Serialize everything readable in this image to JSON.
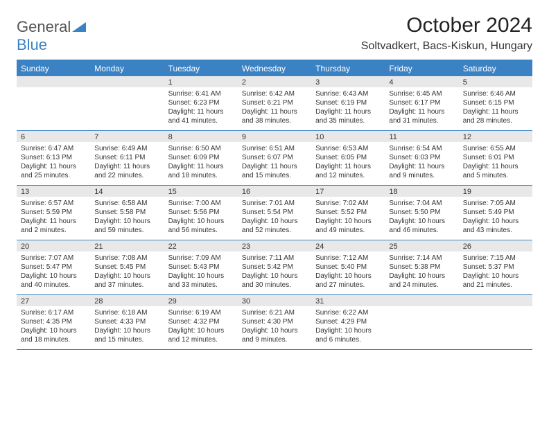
{
  "logo": {
    "text1": "General",
    "text2": "Blue"
  },
  "title": "October 2024",
  "location": "Soltvadkert, Bacs-Kiskun, Hungary",
  "colors": {
    "primary": "#3b82c4",
    "header_bg": "#3b82c4",
    "daynum_bg": "#e8e8e8",
    "text": "#333333",
    "bg": "#ffffff"
  },
  "day_names": [
    "Sunday",
    "Monday",
    "Tuesday",
    "Wednesday",
    "Thursday",
    "Friday",
    "Saturday"
  ],
  "weeks": [
    [
      {
        "n": "",
        "empty": true
      },
      {
        "n": "",
        "empty": true
      },
      {
        "n": "1",
        "sunrise": "Sunrise: 6:41 AM",
        "sunset": "Sunset: 6:23 PM",
        "daylight": "Daylight: 11 hours and 41 minutes."
      },
      {
        "n": "2",
        "sunrise": "Sunrise: 6:42 AM",
        "sunset": "Sunset: 6:21 PM",
        "daylight": "Daylight: 11 hours and 38 minutes."
      },
      {
        "n": "3",
        "sunrise": "Sunrise: 6:43 AM",
        "sunset": "Sunset: 6:19 PM",
        "daylight": "Daylight: 11 hours and 35 minutes."
      },
      {
        "n": "4",
        "sunrise": "Sunrise: 6:45 AM",
        "sunset": "Sunset: 6:17 PM",
        "daylight": "Daylight: 11 hours and 31 minutes."
      },
      {
        "n": "5",
        "sunrise": "Sunrise: 6:46 AM",
        "sunset": "Sunset: 6:15 PM",
        "daylight": "Daylight: 11 hours and 28 minutes."
      }
    ],
    [
      {
        "n": "6",
        "sunrise": "Sunrise: 6:47 AM",
        "sunset": "Sunset: 6:13 PM",
        "daylight": "Daylight: 11 hours and 25 minutes."
      },
      {
        "n": "7",
        "sunrise": "Sunrise: 6:49 AM",
        "sunset": "Sunset: 6:11 PM",
        "daylight": "Daylight: 11 hours and 22 minutes."
      },
      {
        "n": "8",
        "sunrise": "Sunrise: 6:50 AM",
        "sunset": "Sunset: 6:09 PM",
        "daylight": "Daylight: 11 hours and 18 minutes."
      },
      {
        "n": "9",
        "sunrise": "Sunrise: 6:51 AM",
        "sunset": "Sunset: 6:07 PM",
        "daylight": "Daylight: 11 hours and 15 minutes."
      },
      {
        "n": "10",
        "sunrise": "Sunrise: 6:53 AM",
        "sunset": "Sunset: 6:05 PM",
        "daylight": "Daylight: 11 hours and 12 minutes."
      },
      {
        "n": "11",
        "sunrise": "Sunrise: 6:54 AM",
        "sunset": "Sunset: 6:03 PM",
        "daylight": "Daylight: 11 hours and 9 minutes."
      },
      {
        "n": "12",
        "sunrise": "Sunrise: 6:55 AM",
        "sunset": "Sunset: 6:01 PM",
        "daylight": "Daylight: 11 hours and 5 minutes."
      }
    ],
    [
      {
        "n": "13",
        "sunrise": "Sunrise: 6:57 AM",
        "sunset": "Sunset: 5:59 PM",
        "daylight": "Daylight: 11 hours and 2 minutes."
      },
      {
        "n": "14",
        "sunrise": "Sunrise: 6:58 AM",
        "sunset": "Sunset: 5:58 PM",
        "daylight": "Daylight: 10 hours and 59 minutes."
      },
      {
        "n": "15",
        "sunrise": "Sunrise: 7:00 AM",
        "sunset": "Sunset: 5:56 PM",
        "daylight": "Daylight: 10 hours and 56 minutes."
      },
      {
        "n": "16",
        "sunrise": "Sunrise: 7:01 AM",
        "sunset": "Sunset: 5:54 PM",
        "daylight": "Daylight: 10 hours and 52 minutes."
      },
      {
        "n": "17",
        "sunrise": "Sunrise: 7:02 AM",
        "sunset": "Sunset: 5:52 PM",
        "daylight": "Daylight: 10 hours and 49 minutes."
      },
      {
        "n": "18",
        "sunrise": "Sunrise: 7:04 AM",
        "sunset": "Sunset: 5:50 PM",
        "daylight": "Daylight: 10 hours and 46 minutes."
      },
      {
        "n": "19",
        "sunrise": "Sunrise: 7:05 AM",
        "sunset": "Sunset: 5:49 PM",
        "daylight": "Daylight: 10 hours and 43 minutes."
      }
    ],
    [
      {
        "n": "20",
        "sunrise": "Sunrise: 7:07 AM",
        "sunset": "Sunset: 5:47 PM",
        "daylight": "Daylight: 10 hours and 40 minutes."
      },
      {
        "n": "21",
        "sunrise": "Sunrise: 7:08 AM",
        "sunset": "Sunset: 5:45 PM",
        "daylight": "Daylight: 10 hours and 37 minutes."
      },
      {
        "n": "22",
        "sunrise": "Sunrise: 7:09 AM",
        "sunset": "Sunset: 5:43 PM",
        "daylight": "Daylight: 10 hours and 33 minutes."
      },
      {
        "n": "23",
        "sunrise": "Sunrise: 7:11 AM",
        "sunset": "Sunset: 5:42 PM",
        "daylight": "Daylight: 10 hours and 30 minutes."
      },
      {
        "n": "24",
        "sunrise": "Sunrise: 7:12 AM",
        "sunset": "Sunset: 5:40 PM",
        "daylight": "Daylight: 10 hours and 27 minutes."
      },
      {
        "n": "25",
        "sunrise": "Sunrise: 7:14 AM",
        "sunset": "Sunset: 5:38 PM",
        "daylight": "Daylight: 10 hours and 24 minutes."
      },
      {
        "n": "26",
        "sunrise": "Sunrise: 7:15 AM",
        "sunset": "Sunset: 5:37 PM",
        "daylight": "Daylight: 10 hours and 21 minutes."
      }
    ],
    [
      {
        "n": "27",
        "sunrise": "Sunrise: 6:17 AM",
        "sunset": "Sunset: 4:35 PM",
        "daylight": "Daylight: 10 hours and 18 minutes."
      },
      {
        "n": "28",
        "sunrise": "Sunrise: 6:18 AM",
        "sunset": "Sunset: 4:33 PM",
        "daylight": "Daylight: 10 hours and 15 minutes."
      },
      {
        "n": "29",
        "sunrise": "Sunrise: 6:19 AM",
        "sunset": "Sunset: 4:32 PM",
        "daylight": "Daylight: 10 hours and 12 minutes."
      },
      {
        "n": "30",
        "sunrise": "Sunrise: 6:21 AM",
        "sunset": "Sunset: 4:30 PM",
        "daylight": "Daylight: 10 hours and 9 minutes."
      },
      {
        "n": "31",
        "sunrise": "Sunrise: 6:22 AM",
        "sunset": "Sunset: 4:29 PM",
        "daylight": "Daylight: 10 hours and 6 minutes."
      },
      {
        "n": "",
        "empty": true
      },
      {
        "n": "",
        "empty": true
      }
    ]
  ]
}
